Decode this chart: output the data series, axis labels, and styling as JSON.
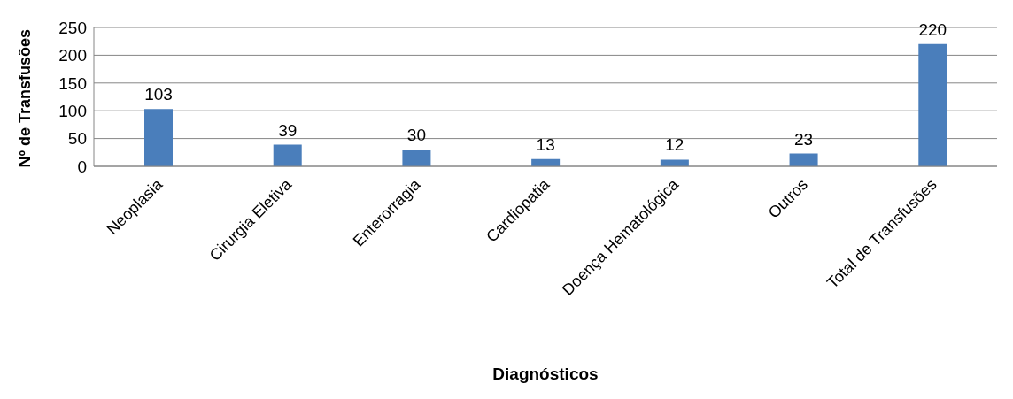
{
  "chart_data": {
    "type": "bar",
    "xlabel": "Diagnósticos",
    "ylabel": "Nº de Transfusões",
    "categories": [
      "Neoplasia",
      "Cirurgia Eletiva",
      "Enterorragia",
      "Cardiopatia",
      "Doença Hematológica",
      "Outros",
      "Total de Transfusões"
    ],
    "values": [
      103,
      39,
      30,
      13,
      12,
      23,
      220
    ],
    "color": "#4a7ebb",
    "ylim": [
      0,
      250
    ],
    "yticks": [
      0,
      50,
      100,
      150,
      200,
      250
    ],
    "grid": "y",
    "data_labels": true
  }
}
